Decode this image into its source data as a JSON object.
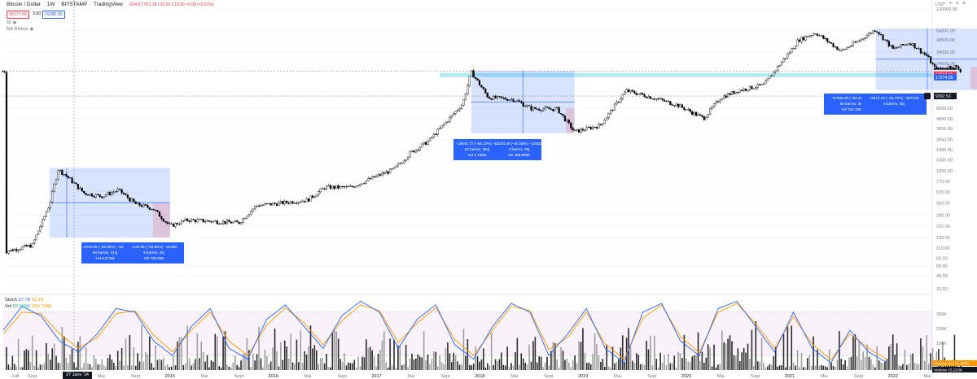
{
  "header": {
    "symbol": "Bitcoin / Dollar",
    "interval": "1W",
    "exchange": "BITSTAMP",
    "source": "TradingView",
    "ohlc": "O14.67 H21.38 L20.00 C15.00 +0.08 (+0.01%)",
    "sell_price": "19177.00",
    "spread": "3.00",
    "buy_price": "19380.00",
    "indicator_1": "50",
    "indicator_2": "MA Ribbon",
    "currency": "USD"
  },
  "toolbar_icons": [
    "minus-icon",
    "plus-icon",
    "close-icon",
    "menu-icon"
  ],
  "price_tags": {
    "last": "19406.00",
    "last_sub": "2d 3h",
    "tag2": "17604.11",
    "tag3": "17074.85",
    "tag4": "9392.53"
  },
  "volume_tags": {
    "ma": "Volume MA",
    "ma_value": "16.468K",
    "vol": "Volume",
    "vol_value": "15.223K"
  },
  "measurements": [
    {
      "line1": "−1010.60 (−86.90%) −1010₆",
      "line2": "59 barres, 413j",
      "line3": "Vol 6.573M"
    },
    {
      "line1": "−224.86 (−59.60%) −22486",
      "line2": "5 barres, 35j",
      "line3": "Vol 728.83K"
    },
    {
      "line1": "−16543.72 (−84.12%) −16",
      "line2": "52 barres, 364j",
      "line3": "Vol 4.138M"
    },
    {
      "line1": "−2230.29 (−50.85%) −223029",
      "line2": "4 barres, 28j",
      "line3": "Vol 488.869K"
    },
    {
      "line1": "−57509.00 (−83.48%) −57",
      "line2": "55 barres, 385j",
      "line3": "Vol 762.185K"
    },
    {
      "line1": "−9674.43 (−45.73%) −967443",
      "line2": "5 barres, 35j",
      "line3": ""
    }
  ],
  "stoch_label": {
    "name": "Stoch",
    "k": "57.78",
    "d": "62.23"
  },
  "vol_label": {
    "name": "Vol",
    "value": "83.555K",
    "extra": "150.718K"
  },
  "stoch_axis": [
    "300K",
    "200K",
    "100K"
  ],
  "time_badge": "27 Janv '14",
  "chart_data": [
    {
      "type": "line",
      "title": "Bitcoin / Dollar · 1W · BITSTAMP",
      "scale": "log",
      "yticks": [
        120000,
        64000,
        48500,
        34000,
        24500,
        6600,
        4850,
        3650,
        2650,
        1950,
        1450,
        1050,
        770,
        570,
        410,
        290,
        210,
        150,
        110,
        82,
        65,
        49,
        33.5
      ],
      "ytick_labels": [
        "120000.00",
        "64000.00",
        "48500.00",
        "34000.00",
        "24500.00",
        "6600.00",
        "4850.00",
        "3650.00",
        "2650.00",
        "1950.00",
        "1450.00",
        "1050.00",
        "770.00",
        "570.00",
        "410.00",
        "290.00",
        "210.00",
        "150.00",
        "110.00",
        "82.00",
        "65.00",
        "49.00",
        "33.50"
      ],
      "xticks": [
        "Juill",
        "Sept",
        "Mai",
        "Sept",
        "2015",
        "Mai",
        "Sept",
        "2016",
        "Mai",
        "Sept",
        "2017",
        "Mai",
        "Sept",
        "2018",
        "Mai",
        "Sept",
        "2019",
        "Mai",
        "Sept",
        "2020",
        "Mai",
        "Sept",
        "2021",
        "Mai",
        "Sept",
        "2022",
        "Mai",
        "Sept",
        "2023"
      ],
      "series": [
        {
          "x": [
            "2013-06",
            "2013-09",
            "2013-11",
            "2013-12",
            "2014-01",
            "2014-03",
            "2014-05",
            "2014-07",
            "2014-09",
            "2014-11",
            "2015-01",
            "2015-03",
            "2015-06",
            "2015-09",
            "2015-11",
            "2016-01",
            "2016-05",
            "2016-07",
            "2016-10",
            "2017-01",
            "2017-03",
            "2017-05",
            "2017-07",
            "2017-09",
            "2017-11",
            "2017-12",
            "2018-02",
            "2018-05",
            "2018-07",
            "2018-10",
            "2018-12",
            "2019-03",
            "2019-06",
            "2019-09",
            "2019-12",
            "2020-03",
            "2020-05",
            "2020-07",
            "2020-10",
            "2020-12",
            "2021-01",
            "2021-02",
            "2021-04",
            "2021-07",
            "2021-09",
            "2021-11",
            "2022-01",
            "2022-03",
            "2022-05",
            "2022-06",
            "2022-08",
            "2022-09"
          ],
          "values": [
            100,
            120,
            400,
            1100,
            900,
            550,
            500,
            600,
            400,
            350,
            210,
            250,
            240,
            230,
            380,
            400,
            450,
            650,
            650,
            900,
            1100,
            1800,
            2500,
            4300,
            7500,
            19000,
            9000,
            8500,
            6500,
            6400,
            3300,
            4000,
            11000,
            9000,
            7200,
            4900,
            9000,
            11000,
            13000,
            25000,
            34000,
            48000,
            60000,
            35000,
            47000,
            66000,
            37000,
            45000,
            30000,
            20000,
            23000,
            19406
          ]
        }
      ],
      "annotations": [
        "Y=17074.85 support band",
        "Y=9392.53 dotted"
      ]
    },
    {
      "type": "line",
      "title": "Stoch",
      "series": [
        {
          "name": "Stoch",
          "values": [
            55,
            88,
            75,
            40,
            25,
            50,
            85,
            80,
            40,
            20,
            60,
            85,
            30,
            15,
            70,
            90,
            60,
            30,
            75,
            95,
            80,
            30,
            70,
            90,
            35,
            15,
            60,
            92,
            80,
            20,
            50,
            85,
            30,
            10,
            80,
            92,
            40,
            20,
            85,
            95,
            60,
            25,
            80,
            30,
            10,
            55,
            25,
            10
          ]
        },
        {
          "name": "%D",
          "values": [
            50,
            80,
            78,
            50,
            30,
            45,
            78,
            82,
            48,
            25,
            55,
            80,
            40,
            20,
            62,
            86,
            65,
            35,
            68,
            90,
            82,
            38,
            65,
            86,
            42,
            20,
            55,
            88,
            82,
            28,
            45,
            80,
            36,
            15,
            72,
            90,
            46,
            24,
            80,
            92,
            64,
            30,
            74,
            36,
            14,
            50,
            30,
            14
          ]
        }
      ]
    }
  ]
}
